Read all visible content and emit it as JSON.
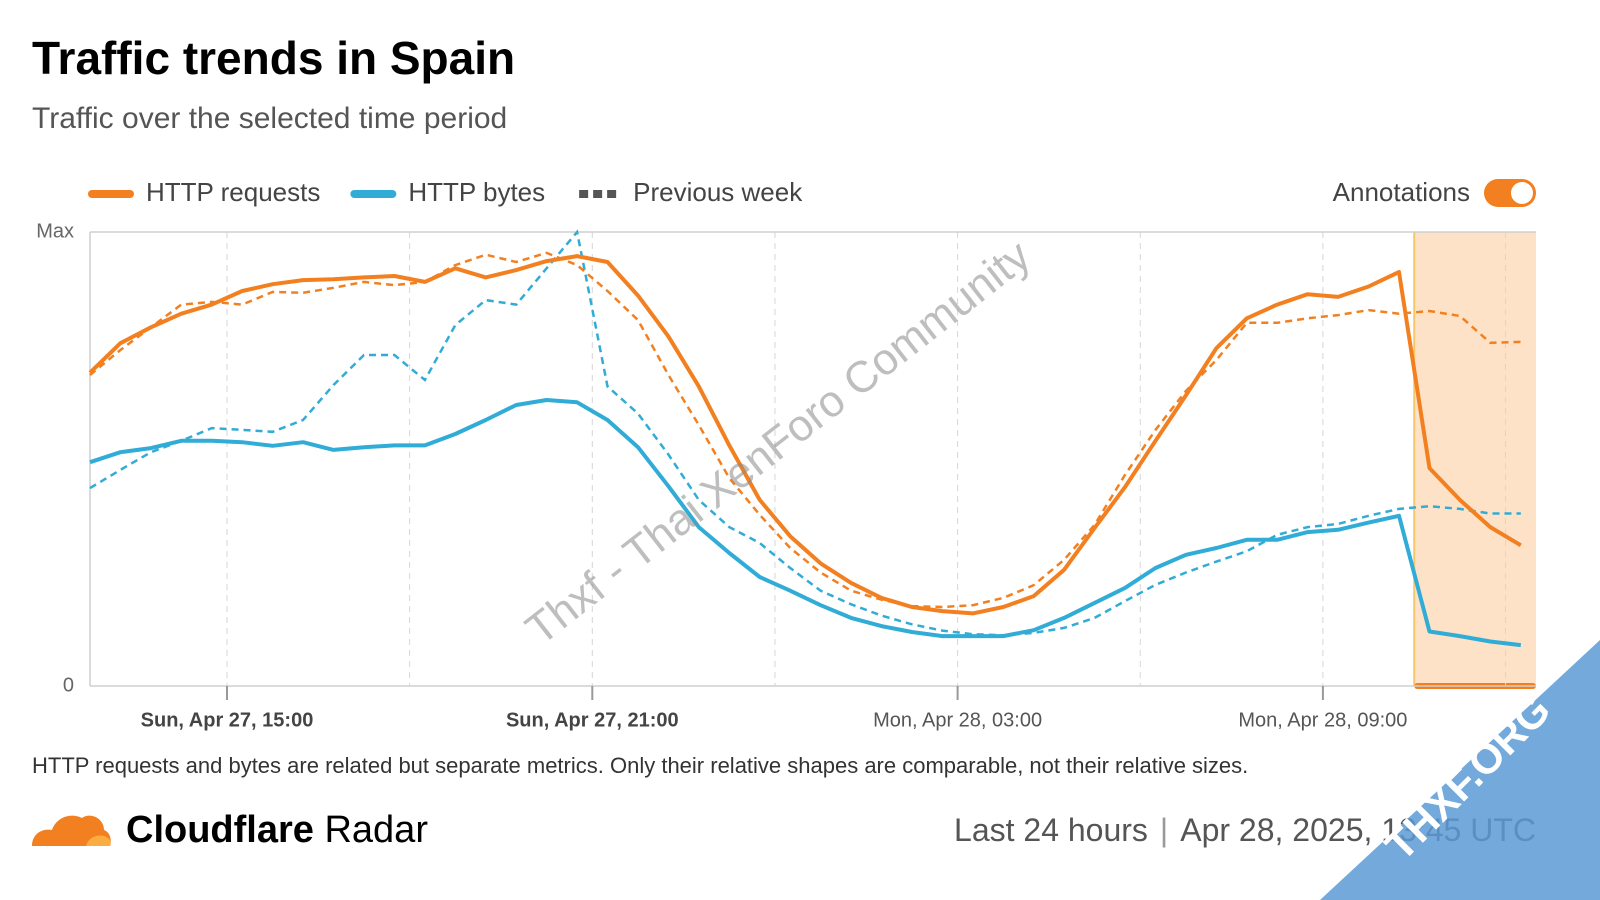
{
  "chart_data": {
    "type": "line",
    "title": "Traffic trends in Spain",
    "subtitle": "Traffic over the selected time period",
    "previous_label": "Previous week",
    "annotations_label": "Annotations",
    "annotations_on": true,
    "annotation_range": [
      "Mon, Apr 28, 10:30",
      "Mon, Apr 28, 12:30"
    ],
    "note": "HTTP requests and bytes are related but separate metrics. Only their relative shapes are comparable, not their relative sizes.",
    "brand_bold": "Cloudflare",
    "brand_rest": "Radar",
    "period": "Last 24 hours",
    "timestamp": "Apr 28, 2025, 13:45 UTC",
    "watermark": "Thxf - Thai XenForo Community",
    "badge": "THXF.ORG",
    "x": [
      "Sun, Apr 27, 12:45",
      "Sun, Apr 27, 13:15",
      "Sun, Apr 27, 13:45",
      "Sun, Apr 27, 14:15",
      "Sun, Apr 27, 14:45",
      "Sun, Apr 27, 15:15",
      "Sun, Apr 27, 15:45",
      "Sun, Apr 27, 16:15",
      "Sun, Apr 27, 16:45",
      "Sun, Apr 27, 17:15",
      "Sun, Apr 27, 17:45",
      "Sun, Apr 27, 18:15",
      "Sun, Apr 27, 18:45",
      "Sun, Apr 27, 19:15",
      "Sun, Apr 27, 19:45",
      "Sun, Apr 27, 20:15",
      "Sun, Apr 27, 20:45",
      "Sun, Apr 27, 21:15",
      "Sun, Apr 27, 21:45",
      "Sun, Apr 27, 22:15",
      "Sun, Apr 27, 22:45",
      "Sun, Apr 27, 23:15",
      "Sun, Apr 27, 23:45",
      "Mon, Apr 28, 00:15",
      "Mon, Apr 28, 00:45",
      "Mon, Apr 28, 01:15",
      "Mon, Apr 28, 01:45",
      "Mon, Apr 28, 02:15",
      "Mon, Apr 28, 02:45",
      "Mon, Apr 28, 03:15",
      "Mon, Apr 28, 03:45",
      "Mon, Apr 28, 04:15",
      "Mon, Apr 28, 04:45",
      "Mon, Apr 28, 05:15",
      "Mon, Apr 28, 05:45",
      "Mon, Apr 28, 06:15",
      "Mon, Apr 28, 06:45",
      "Mon, Apr 28, 07:15",
      "Mon, Apr 28, 07:45",
      "Mon, Apr 28, 08:15",
      "Mon, Apr 28, 08:45",
      "Mon, Apr 28, 09:15",
      "Mon, Apr 28, 09:45",
      "Mon, Apr 28, 10:15",
      "Mon, Apr 28, 10:45",
      "Mon, Apr 28, 11:15",
      "Mon, Apr 28, 11:45",
      "Mon, Apr 28, 12:15"
    ],
    "xlim": [
      "Sun, Apr 27, 12:45",
      "Mon, Apr 28, 12:30"
    ],
    "xticks": [
      "Sun, Apr 27, 15:00",
      "Sun, Apr 27, 21:00",
      "Mon, Apr 28, 03:00",
      "Mon, Apr 28, 09:00"
    ],
    "xtick_bold": [
      true,
      true,
      false,
      false
    ],
    "xgrid": [
      "Sun, Apr 27, 15:00",
      "Sun, Apr 27, 18:00",
      "Sun, Apr 27, 21:00",
      "Mon, Apr 28, 00:00",
      "Mon, Apr 28, 03:00",
      "Mon, Apr 28, 06:00",
      "Mon, Apr 28, 09:00",
      "Mon, Apr 28, 12:00"
    ],
    "ylim": [
      0,
      100
    ],
    "yticks": [
      0,
      {
        "value": 100,
        "label": "Max"
      }
    ],
    "series": [
      {
        "name": "HTTP requests",
        "color": "#f38020",
        "values": [
          69,
          75.5,
          79,
          82,
          84,
          87,
          88.5,
          89.4,
          89.6,
          90,
          90.3,
          89,
          92,
          90,
          91.6,
          93.6,
          94.7,
          93.4,
          86,
          77,
          66,
          53,
          41,
          33,
          27,
          22.7,
          19.4,
          17.4,
          16.5,
          16,
          17.4,
          19.8,
          25.6,
          34.8,
          43.8,
          54,
          64,
          74.4,
          81,
          84,
          86.3,
          85.7,
          88,
          91.2,
          48,
          41,
          35,
          31
        ],
        "previous": [
          68.5,
          74,
          79,
          84,
          84.6,
          84,
          86.8,
          86.6,
          87.7,
          89,
          88.3,
          89,
          92.7,
          95,
          93.4,
          95.4,
          92.7,
          87,
          80.6,
          68.5,
          57.5,
          45.8,
          37.7,
          30.4,
          25,
          21,
          19,
          17.6,
          17.4,
          17.8,
          19.4,
          22.2,
          27.8,
          35.5,
          46.5,
          56.4,
          65,
          71.8,
          80,
          80,
          81,
          81.7,
          82.8,
          82,
          82.6,
          81.5,
          75.6,
          75.8
        ]
      },
      {
        "name": "HTTP bytes",
        "color": "#31acd6",
        "values": [
          49.3,
          51.5,
          52.4,
          54,
          54,
          53.7,
          52.9,
          53.7,
          52,
          52.6,
          53,
          53,
          55.5,
          58.6,
          61.9,
          63,
          62.5,
          58.6,
          52.6,
          44,
          35,
          29.3,
          24,
          21,
          17.8,
          15,
          13.2,
          11.9,
          11,
          11,
          11,
          12.3,
          15,
          18.3,
          21.6,
          26,
          28.9,
          30.4,
          32.2,
          32.2,
          33.9,
          34.4,
          36,
          37.5,
          12,
          11,
          9.8,
          9
        ],
        "previous": [
          43.6,
          47.6,
          51.5,
          54,
          56.8,
          56.4,
          56,
          58.6,
          66.3,
          72.9,
          72.9,
          67.4,
          79.5,
          85,
          84,
          92,
          100,
          66,
          60,
          51,
          41,
          35,
          31.5,
          26,
          21,
          18,
          15.5,
          13.6,
          12.2,
          11.4,
          11.2,
          11.7,
          12.8,
          15,
          18.7,
          22.3,
          25,
          27.4,
          29.7,
          33.3,
          35,
          35.7,
          37.5,
          39,
          39.6,
          39,
          38,
          38
        ]
      }
    ]
  }
}
